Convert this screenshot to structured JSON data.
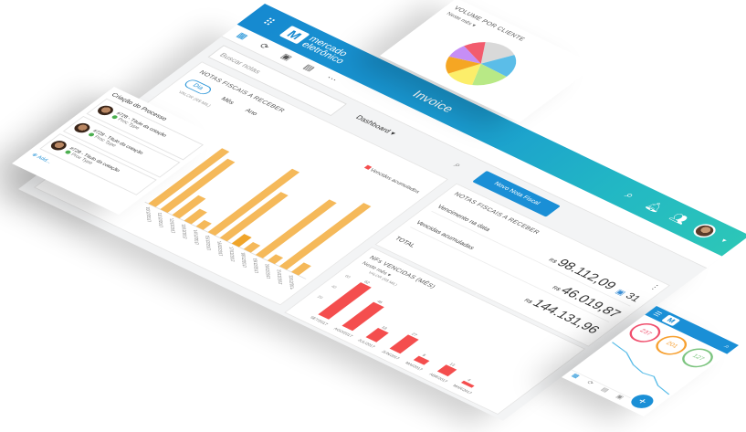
{
  "app": {
    "logo_text": "mercado eletrônico",
    "title": "Invoice",
    "toolbar_icons": [
      "dashboard-icon",
      "sync-icon",
      "calendar-icon",
      "grid-icon",
      "more-icon"
    ],
    "dashboard_label": "Dashboard",
    "search_placeholder": "Buscar notas",
    "new_button": "Novo Nota Fiscal",
    "topbar_icons": [
      "search-icon",
      "bell-icon",
      "users-icon",
      "avatar"
    ],
    "colors": {
      "primary": "#1a8fd6",
      "teal": "#2cc6b8",
      "orange": "#f5b95a",
      "red": "#f44e4e"
    }
  },
  "orange_card": {
    "title": "NOTAS FISCAIS A RECEBER",
    "tabs": [
      {
        "label": "Dia",
        "active": true
      },
      {
        "label": "Mês",
        "active": false
      },
      {
        "label": "Ano",
        "active": false
      }
    ],
    "legend": "Vencidos acumulados"
  },
  "summary": {
    "title": "NOTAS FISCAIS A RECEBER",
    "rows": [
      {
        "label": "Vencimento na data",
        "currency": "R$",
        "value": "98.112,09",
        "badge": "31"
      },
      {
        "label": "Vencidas acumuladas",
        "currency": "R$",
        "value": "46.019,87"
      },
      {
        "label": "TOTAL",
        "currency": "R$",
        "value": "144.131,96"
      }
    ]
  },
  "red_card": {
    "title": "NFs VENCIDAS (MÊS)",
    "filter": "Neste mês"
  },
  "pie_card": {
    "title": "VOLUME POR CLIENTE",
    "filter": "Neste mês"
  },
  "criacao": {
    "title": "Criação do Processo",
    "items": [
      {
        "title": "#728 - Título da cotação",
        "type": "Proc Type"
      },
      {
        "title": "#728 - Título da cotação",
        "type": "Proc Type"
      },
      {
        "title": "#728 - Título da cotação",
        "type": "Proc Type"
      }
    ],
    "add_label": "Add..."
  },
  "phone": {
    "stats": [
      {
        "value": "237",
        "color": "#f0506e"
      },
      {
        "value": "201",
        "color": "#f7a030"
      },
      {
        "value": "127",
        "color": "#7cc47f"
      }
    ],
    "fab": "+"
  },
  "chart_data": [
    {
      "type": "bar",
      "ylabel": "VALOR (R$ MIL)",
      "categories": [
        "10/12/2017",
        "11/12/2017",
        "12/12/2017",
        "13/12/2017",
        "14/12/2017",
        "15/12/2017",
        "16/12/2017",
        "17/12/2017",
        "18/12/2017",
        "19/12/2017",
        "20/12/2017",
        "21/12/2017",
        "22/12/2017"
      ],
      "values": [
        70,
        64,
        25,
        15,
        8,
        80,
        58,
        12,
        9,
        70,
        8,
        80,
        12
      ],
      "highlight_index": 7,
      "legend": "Vencidos acumulados"
    },
    {
      "type": "bar",
      "ylabel": "VALOR (R$ MIL)",
      "yticks": [
        20,
        40,
        60
      ],
      "categories": [
        "SET/2017",
        "AGO/2017",
        "JUL/2017",
        "JUN/2017",
        "MAI/2017",
        "ABR/2017",
        "MAR/2017"
      ],
      "values": [
        62,
        46,
        18,
        27,
        8,
        13,
        4
      ]
    },
    {
      "type": "pie",
      "title": "VOLUME POR CLIENTE",
      "values": [
        18,
        17,
        17,
        15,
        13,
        10,
        10
      ],
      "colors": [
        "#d9d9d9",
        "#5bbde8",
        "#b8e986",
        "#fcee6a",
        "#f5a623",
        "#c68ef5",
        "#f25c6e"
      ]
    }
  ]
}
